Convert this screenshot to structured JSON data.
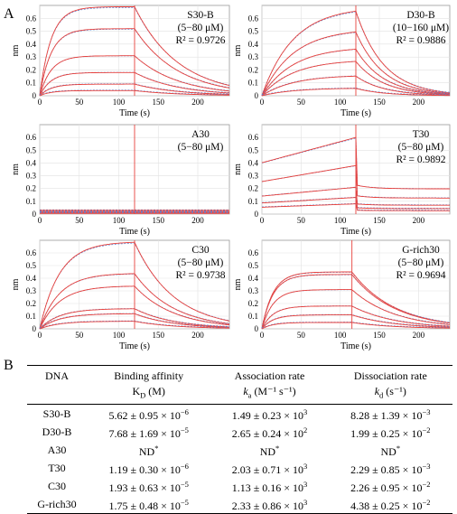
{
  "panel_labels": {
    "a": "A",
    "b": "B"
  },
  "chart_data": [
    {
      "type": "line",
      "title": "S30-B",
      "subtitle": "(5−80 μM)",
      "r2": "R² = 0.9726",
      "xlabel": "Time (s)",
      "ylabel": "nm",
      "xlim": [
        0,
        240
      ],
      "ylim": [
        0,
        0.7
      ],
      "xticks": [
        "0",
        "50",
        "100",
        "150",
        "200"
      ],
      "yticks": [
        "0",
        "0.1",
        "0.2",
        "0.3",
        "0.4",
        "0.5",
        "0.6"
      ],
      "injection_end": 120,
      "shape": "fast",
      "plateaus": [
        0.69,
        0.52,
        0.31,
        0.18,
        0.09,
        0.04
      ],
      "fit_color": "#e8413c"
    },
    {
      "type": "line",
      "title": "D30-B",
      "subtitle": "(10−160 μM)",
      "r2": "R² = 0.9886",
      "xlabel": "Time (s)",
      "ylabel": "nm",
      "xlim": [
        0,
        240
      ],
      "ylim": [
        0,
        0.7
      ],
      "xticks": [
        "0",
        "50",
        "100",
        "150",
        "200"
      ],
      "yticks": [
        "0",
        "0.1",
        "0.2",
        "0.3",
        "0.4",
        "0.5",
        "0.6"
      ],
      "injection_end": 120,
      "shape": "slow",
      "plateaus": [
        0.69,
        0.52,
        0.38,
        0.28,
        0.16,
        0.06
      ],
      "fit_color": "#e8413c"
    },
    {
      "type": "line",
      "title": "A30",
      "subtitle": "(5−80 μM)",
      "r2": "",
      "xlabel": "Time (s)",
      "ylabel": "nm",
      "xlim": [
        0,
        240
      ],
      "ylim": [
        0,
        0.7
      ],
      "xticks": [
        "0",
        "50",
        "100",
        "150",
        "200"
      ],
      "yticks": [
        "0",
        "0.1",
        "0.2",
        "0.3",
        "0.4",
        "0.5",
        "0.6"
      ],
      "injection_end": 120,
      "shape": "flat",
      "plateaus": [
        0.03,
        0.022,
        0.015,
        0.01,
        0.005
      ],
      "fit_color": "#e8413c"
    },
    {
      "type": "line",
      "title": "T30",
      "subtitle": "(5−80 μM)",
      "r2": "R² = 0.9892",
      "xlabel": "Time (s)",
      "ylabel": "nm",
      "xlim": [
        0,
        240
      ],
      "ylim": [
        0,
        0.7
      ],
      "xticks": [
        "0",
        "50",
        "100",
        "150",
        "200"
      ],
      "yticks": [
        "0",
        "0.1",
        "0.2",
        "0.3",
        "0.4",
        "0.5",
        "0.6"
      ],
      "injection_end": 120,
      "shape": "jump",
      "plateaus": [
        0.6,
        0.38,
        0.21,
        0.13,
        0.08
      ],
      "fit_color": "#e8413c"
    },
    {
      "type": "line",
      "title": "C30",
      "subtitle": "(5−80 μM)",
      "r2": "R² = 0.9738",
      "xlabel": "Time (s)",
      "ylabel": "nm",
      "xlim": [
        0,
        240
      ],
      "ylim": [
        0,
        0.7
      ],
      "xticks": [
        "0",
        "50",
        "100",
        "150",
        "200"
      ],
      "yticks": [
        "0",
        "0.1",
        "0.2",
        "0.3",
        "0.4",
        "0.5",
        "0.6"
      ],
      "injection_end": 120,
      "shape": "medium",
      "plateaus": [
        0.69,
        0.44,
        0.34,
        0.16,
        0.12,
        0.06
      ],
      "fit_color": "#e8413c"
    },
    {
      "type": "line",
      "title": "G-rich30",
      "subtitle": "(5−80 μM)",
      "r2": "R² = 0.9694",
      "xlabel": "Time (s)",
      "ylabel": "nm",
      "xlim": [
        0,
        240
      ],
      "ylim": [
        0,
        0.7
      ],
      "xticks": [
        "0",
        "50",
        "100",
        "150",
        "200"
      ],
      "yticks": [
        "0",
        "0.1",
        "0.2",
        "0.3",
        "0.4",
        "0.5",
        "0.6"
      ],
      "injection_end": 115,
      "shape": "fast",
      "plateaus": [
        0.45,
        0.43,
        0.31,
        0.18,
        0.11,
        0.05
      ],
      "fit_color": "#e8413c"
    },
    {
      "type": "table",
      "headers": [
        {
          "main": "DNA",
          "sym": "",
          "sub": "",
          "sup": "",
          "unit": ""
        },
        {
          "main": "Binding affinity",
          "sym": "K",
          "sub": "D",
          "sup": "",
          "unit": " (M)"
        },
        {
          "main": "Association rate",
          "sym": "k",
          "sub": "a",
          "sup": "",
          "unit": " (M⁻¹ s⁻¹)"
        },
        {
          "main": "Dissociation rate",
          "sym": "k",
          "sub": "d",
          "sup": "",
          "unit": " (s⁻¹)"
        }
      ],
      "rows": [
        {
          "dna": "S30-B",
          "kd": {
            "m": "5.62 ± 0.95 × 10",
            "e": "−6"
          },
          "ka": {
            "m": "1.49 ± 0.23 × 10",
            "e": "3"
          },
          "kdis": {
            "m": "8.28 ± 1.39 × 10",
            "e": "−3"
          }
        },
        {
          "dna": "D30-B",
          "kd": {
            "m": "7.68 ± 1.69 × 10",
            "e": "−5"
          },
          "ka": {
            "m": "2.65 ± 0.24 × 10",
            "e": "2"
          },
          "kdis": {
            "m": "1.99 ± 0.25 × 10",
            "e": "−2"
          }
        },
        {
          "dna": "A30",
          "kd": {
            "m": "ND",
            "e": "*"
          },
          "ka": {
            "m": "ND",
            "e": "*"
          },
          "kdis": {
            "m": "ND",
            "e": "*"
          }
        },
        {
          "dna": "T30",
          "kd": {
            "m": "1.19 ± 0.30 × 10",
            "e": "−6"
          },
          "ka": {
            "m": "2.03 ± 0.71 × 10",
            "e": "3"
          },
          "kdis": {
            "m": "2.29 ± 0.85 × 10",
            "e": "−3"
          }
        },
        {
          "dna": "C30",
          "kd": {
            "m": "1.93 ± 0.63 × 10",
            "e": "−5"
          },
          "ka": {
            "m": "1.13 ± 0.16 × 10",
            "e": "3"
          },
          "kdis": {
            "m": "2.26 ± 0.95 × 10",
            "e": "−2"
          }
        },
        {
          "dna": "G-rich30",
          "kd": {
            "m": "1.75 ± 0.48 × 10",
            "e": "−5"
          },
          "ka": {
            "m": "2.33 ± 0.86 × 10",
            "e": "3"
          },
          "kdis": {
            "m": "4.38 ± 0.25 × 10",
            "e": "−2"
          }
        }
      ]
    }
  ]
}
